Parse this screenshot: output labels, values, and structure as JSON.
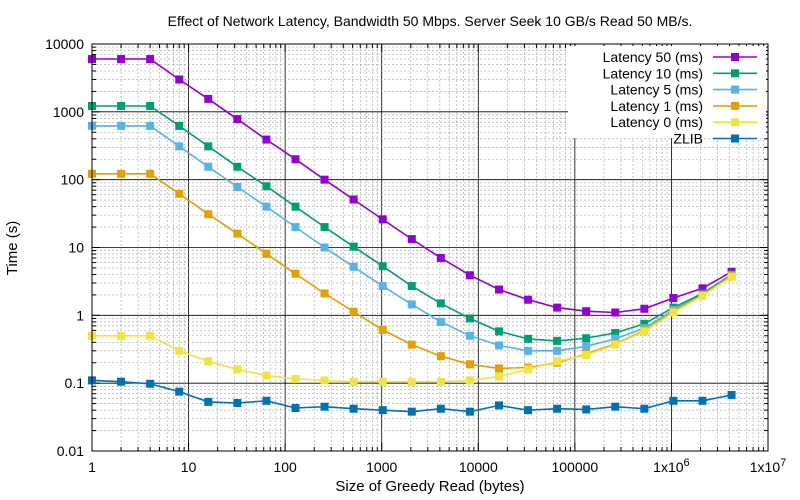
{
  "chart_data": {
    "type": "line",
    "title": "Effect of Network Latency, Bandwidth 50 Mbps. Server Seek 10 GB/s Read 50 MB/s.",
    "xlabel": "Size of Greedy Read (bytes)",
    "ylabel": "Time (s)",
    "xscale": "log",
    "yscale": "log",
    "xlim": [
      1,
      10000000
    ],
    "ylim": [
      0.01,
      10000
    ],
    "grid": true,
    "legend_position": "top-right",
    "x_tick_labels": [
      "1",
      "10",
      "100",
      "1000",
      "10000",
      "100000",
      "1x10^6",
      "1x10^7"
    ],
    "y_tick_labels": [
      "0.01",
      "0.1",
      "1",
      "10",
      "100",
      "1000",
      "10000"
    ],
    "x": [
      1,
      2,
      4,
      8,
      16,
      32,
      64,
      128,
      256,
      512,
      1024,
      2048,
      4096,
      8192,
      16384,
      32768,
      65536,
      131072,
      262144,
      524288,
      1048576,
      2097152,
      4194304
    ],
    "series": [
      {
        "name": "Latency 50 (ms)",
        "color": "#9400d3",
        "values": [
          6000,
          6000,
          6000,
          3000,
          1550,
          780,
          390,
          200,
          100,
          51,
          26,
          13.3,
          7,
          3.9,
          2.4,
          1.7,
          1.3,
          1.15,
          1.1,
          1.25,
          1.8,
          2.5,
          4.4
        ]
      },
      {
        "name": "Latency 10 (ms)",
        "color": "#009e73",
        "values": [
          1220,
          1220,
          1220,
          620,
          310,
          155,
          80,
          40,
          20,
          10.3,
          5.3,
          2.7,
          1.5,
          0.9,
          0.58,
          0.45,
          0.42,
          0.46,
          0.55,
          0.75,
          1.3,
          2.1,
          4.0
        ]
      },
      {
        "name": "Latency 5 (ms)",
        "color": "#56b4e9",
        "values": [
          620,
          620,
          620,
          310,
          155,
          78,
          40,
          20,
          10,
          5.2,
          2.7,
          1.45,
          0.8,
          0.5,
          0.36,
          0.3,
          0.3,
          0.35,
          0.45,
          0.65,
          1.2,
          2.0,
          3.9
        ]
      },
      {
        "name": "Latency 1 (ms)",
        "color": "#e69f00",
        "values": [
          122,
          122,
          122,
          62,
          31,
          16,
          8.1,
          4.1,
          2.1,
          1.13,
          0.61,
          0.37,
          0.25,
          0.19,
          0.165,
          0.17,
          0.2,
          0.27,
          0.38,
          0.6,
          1.15,
          2.0,
          3.8
        ]
      },
      {
        "name": "Latency 0 (ms)",
        "color": "#f0e442",
        "values": [
          0.5,
          0.5,
          0.5,
          0.3,
          0.21,
          0.16,
          0.13,
          0.115,
          0.11,
          0.105,
          0.105,
          0.105,
          0.105,
          0.11,
          0.125,
          0.16,
          0.21,
          0.26,
          0.37,
          0.58,
          1.1,
          1.95,
          3.7
        ]
      },
      {
        "name": "ZLIB",
        "color": "#0072b2",
        "values": [
          0.11,
          0.105,
          0.098,
          0.075,
          0.053,
          0.051,
          0.055,
          0.043,
          0.045,
          0.042,
          0.04,
          0.038,
          0.042,
          0.038,
          0.047,
          0.04,
          0.042,
          0.041,
          0.045,
          0.042,
          0.055,
          0.055,
          0.067
        ]
      }
    ]
  }
}
